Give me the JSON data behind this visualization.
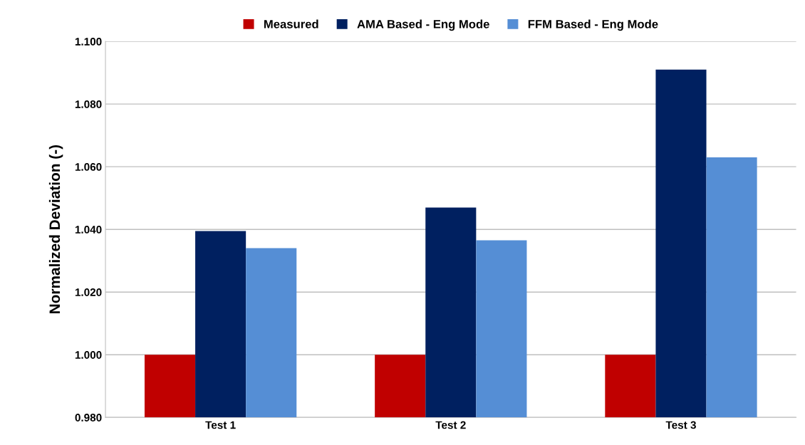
{
  "chart_data": {
    "type": "bar",
    "ylabel": "Normalized Deviation (-)",
    "categories": [
      "Test 1",
      "Test 2",
      "Test 3"
    ],
    "series": [
      {
        "name": "Measured",
        "color": "#c00000",
        "values": [
          1.0,
          1.0,
          1.0
        ]
      },
      {
        "name": "AMA Based - Eng Mode",
        "color": "#002060",
        "values": [
          1.0395,
          1.047,
          1.091
        ]
      },
      {
        "name": "FFM Based - Eng Mode",
        "color": "#558ed5",
        "values": [
          1.034,
          1.0365,
          1.063
        ]
      }
    ],
    "ylim": [
      0.98,
      1.1
    ],
    "yticks": [
      {
        "value": 0.98,
        "label": "0.980"
      },
      {
        "value": 1.0,
        "label": "1.000"
      },
      {
        "value": 1.02,
        "label": "1.020"
      },
      {
        "value": 1.04,
        "label": "1.040"
      },
      {
        "value": 1.06,
        "label": "1.060"
      },
      {
        "value": 1.08,
        "label": "1.080"
      },
      {
        "value": 1.1,
        "label": "1.100"
      }
    ],
    "grid": "y",
    "legend": "top"
  }
}
